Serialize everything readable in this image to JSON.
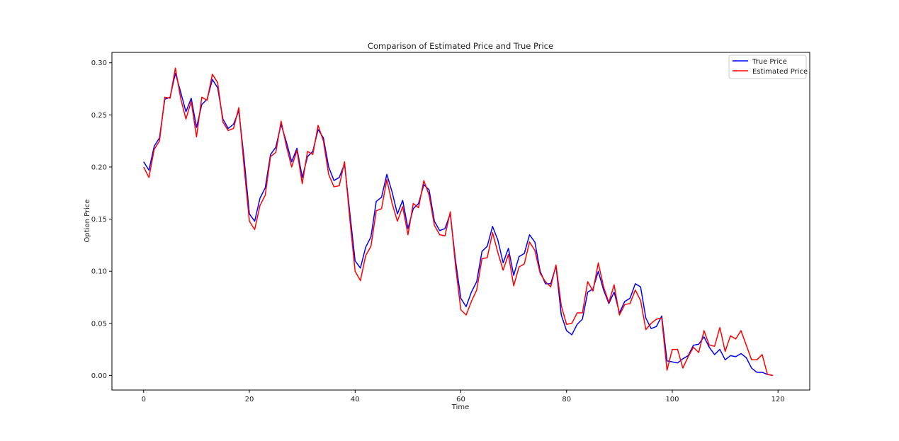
{
  "chart_data": {
    "type": "line",
    "title": "Comparison of Estimated Price and True Price",
    "xlabel": "Time",
    "ylabel": "Option Price",
    "xlim": [
      -6,
      126
    ],
    "ylim": [
      -0.014,
      0.31
    ],
    "xticks": [
      0,
      20,
      40,
      60,
      80,
      100,
      120
    ],
    "yticks": [
      0.0,
      0.05,
      0.1,
      0.15,
      0.2,
      0.25,
      0.3
    ],
    "xtick_labels": [
      "0",
      "20",
      "40",
      "60",
      "80",
      "100",
      "120"
    ],
    "ytick_labels": [
      "0.00",
      "0.05",
      "0.10",
      "0.15",
      "0.20",
      "0.25",
      "0.30"
    ],
    "grid": false,
    "legend_position": "top-right",
    "series": [
      {
        "name": "True Price",
        "color": "#0000ff",
        "values": [
          0.205,
          0.197,
          0.22,
          0.228,
          0.265,
          0.267,
          0.29,
          0.272,
          0.253,
          0.266,
          0.238,
          0.26,
          0.265,
          0.284,
          0.276,
          0.246,
          0.237,
          0.241,
          0.254,
          0.208,
          0.155,
          0.148,
          0.17,
          0.18,
          0.212,
          0.219,
          0.241,
          0.224,
          0.205,
          0.218,
          0.19,
          0.21,
          0.215,
          0.236,
          0.228,
          0.2,
          0.187,
          0.19,
          0.203,
          0.156,
          0.11,
          0.103,
          0.123,
          0.133,
          0.167,
          0.171,
          0.193,
          0.176,
          0.155,
          0.168,
          0.141,
          0.16,
          0.165,
          0.183,
          0.178,
          0.148,
          0.139,
          0.141,
          0.155,
          0.11,
          0.074,
          0.066,
          0.08,
          0.09,
          0.119,
          0.124,
          0.143,
          0.13,
          0.108,
          0.122,
          0.096,
          0.114,
          0.117,
          0.135,
          0.128,
          0.1,
          0.088,
          0.088,
          0.105,
          0.058,
          0.043,
          0.039,
          0.049,
          0.054,
          0.08,
          0.083,
          0.1,
          0.082,
          0.069,
          0.08,
          0.06,
          0.071,
          0.074,
          0.088,
          0.085,
          0.055,
          0.045,
          0.047,
          0.057,
          0.014,
          0.013,
          0.012,
          0.016,
          0.019,
          0.029,
          0.03,
          0.037,
          0.027,
          0.02,
          0.025,
          0.015,
          0.019,
          0.018,
          0.021,
          0.017,
          0.007,
          0.003,
          0.003,
          0.001,
          0.0
        ]
      },
      {
        "name": "Estimated Price",
        "color": "#ff0000",
        "values": [
          0.2,
          0.19,
          0.217,
          0.225,
          0.267,
          0.266,
          0.295,
          0.266,
          0.246,
          0.263,
          0.229,
          0.267,
          0.264,
          0.289,
          0.281,
          0.243,
          0.235,
          0.237,
          0.257,
          0.2,
          0.148,
          0.14,
          0.163,
          0.173,
          0.21,
          0.214,
          0.244,
          0.22,
          0.2,
          0.216,
          0.184,
          0.215,
          0.212,
          0.24,
          0.225,
          0.193,
          0.181,
          0.182,
          0.205,
          0.15,
          0.1,
          0.091,
          0.115,
          0.124,
          0.158,
          0.16,
          0.188,
          0.165,
          0.148,
          0.162,
          0.135,
          0.165,
          0.161,
          0.187,
          0.173,
          0.144,
          0.135,
          0.134,
          0.157,
          0.105,
          0.063,
          0.058,
          0.071,
          0.082,
          0.112,
          0.113,
          0.137,
          0.118,
          0.101,
          0.116,
          0.086,
          0.104,
          0.107,
          0.128,
          0.12,
          0.098,
          0.09,
          0.085,
          0.106,
          0.067,
          0.049,
          0.05,
          0.06,
          0.06,
          0.09,
          0.081,
          0.108,
          0.085,
          0.07,
          0.087,
          0.058,
          0.068,
          0.069,
          0.082,
          0.072,
          0.044,
          0.05,
          0.054,
          0.055,
          0.005,
          0.025,
          0.025,
          0.007,
          0.018,
          0.027,
          0.022,
          0.043,
          0.029,
          0.028,
          0.046,
          0.023,
          0.038,
          0.035,
          0.043,
          0.029,
          0.015,
          0.015,
          0.02,
          0.001,
          0.0
        ]
      }
    ]
  }
}
